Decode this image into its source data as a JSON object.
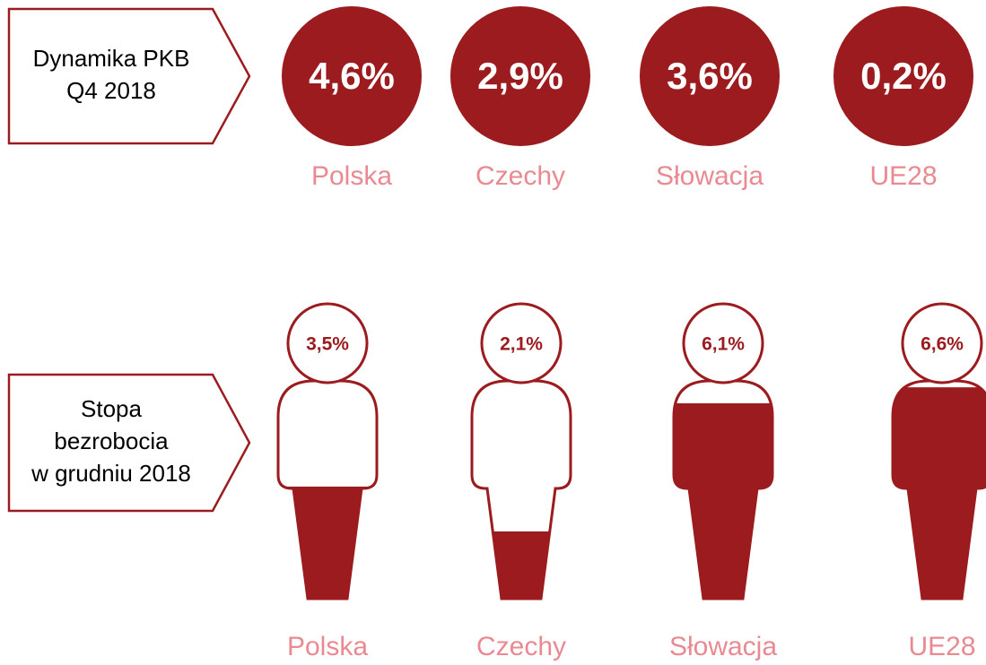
{
  "chart_data": [
    {
      "type": "badge",
      "label": [
        "Dynamika PKB",
        "Q4 2018"
      ],
      "categories": [
        "Polska",
        "Czechy",
        "Słowacja",
        "UE28"
      ],
      "values": [
        4.6,
        2.9,
        3.6,
        0.2
      ],
      "value_labels": [
        "4,6%",
        "2,9%",
        "3,6%",
        "0,2%"
      ],
      "color": "#9b1b1e",
      "label_color": "#e98a92"
    },
    {
      "type": "pictogram",
      "label": [
        "Stopa",
        "bezrobocia",
        "w grudniu 2018"
      ],
      "categories": [
        "Polska",
        "Czechy",
        "Słowacja",
        "UE28"
      ],
      "values": [
        3.5,
        2.1,
        6.1,
        6.6
      ],
      "value_labels": [
        "3,5%",
        "2,1%",
        "6,1%",
        "6,6%"
      ],
      "ylim": [
        0,
        6.8
      ],
      "color": "#9b1b1e",
      "label_color": "#e98a92"
    }
  ]
}
